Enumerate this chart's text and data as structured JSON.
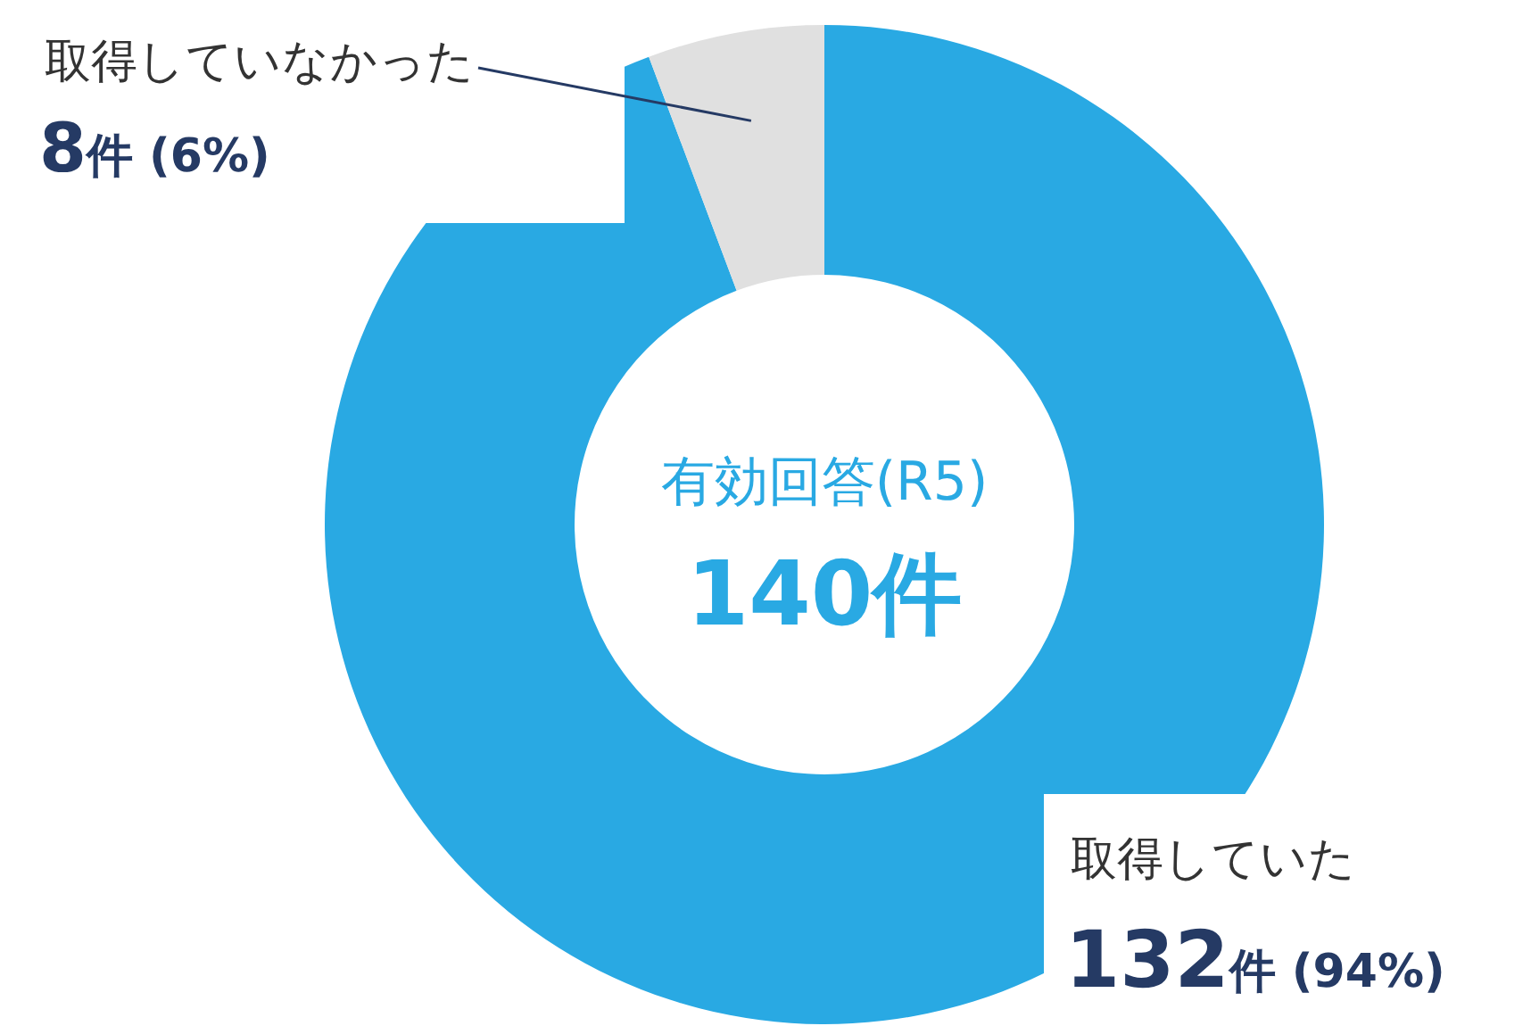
{
  "chart_data": {
    "type": "donut",
    "categories": [
      "取得していた",
      "取得していなかった"
    ],
    "values": [
      132,
      8
    ],
    "colors": [
      "#29a9e3",
      "#e0e0e0"
    ],
    "value_labels": [
      "132件 (94%)",
      "8件 (6%)"
    ],
    "annotations": [
      "有効回答(R5)",
      "140件"
    ]
  }
}
